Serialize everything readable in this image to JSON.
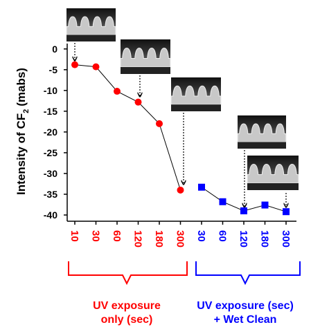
{
  "chart_data": {
    "type": "line",
    "y_label": {
      "main": "Intensity of CF",
      "sub": "2",
      "unit": "(mabs)"
    },
    "categories": [
      "10",
      "30",
      "60",
      "120",
      "180",
      "300",
      "30",
      "60",
      "120",
      "180",
      "300"
    ],
    "series": [
      {
        "color": "#ff0000",
        "marker": "circle",
        "values": [
          -3.8,
          -4.3,
          -10.2,
          -12.8,
          -18,
          -34,
          null,
          null,
          null,
          null,
          null
        ]
      },
      {
        "color": "#0000ff",
        "marker": "square",
        "values": [
          null,
          null,
          null,
          null,
          null,
          null,
          -33.3,
          -36.8,
          -39,
          -37.6,
          -39.2
        ]
      }
    ],
    "groups": [
      {
        "color": "#ff0000",
        "lines": [
          "UV exposure",
          "only (sec)"
        ]
      },
      {
        "color": "#0000ff",
        "lines": [
          "UV exposure (sec)",
          "+ Wet Clean"
        ]
      }
    ],
    "ylim": [
      -41.5,
      1.3
    ],
    "yticks": [
      0,
      -5,
      -10,
      -15,
      -20,
      -25,
      -30,
      -35,
      -40
    ],
    "grid": false
  }
}
